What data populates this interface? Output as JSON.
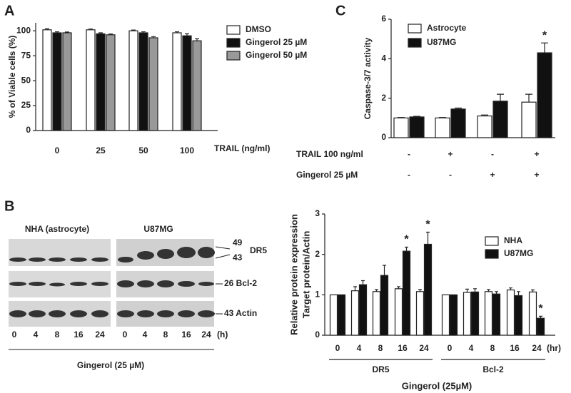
{
  "panels": [
    "A",
    "B",
    "C"
  ],
  "blot": {
    "groups": [
      "NHA (astrocyte)",
      "U87MG"
    ],
    "markers": [
      "49",
      "43"
    ],
    "target": "DR5",
    "rows": [
      "26 Bcl-2",
      "43 Actin"
    ],
    "times": [
      "0",
      "4",
      "8",
      "16",
      "24"
    ],
    "unit": "(h)",
    "treatment": "Gingerol  (25 µM)"
  },
  "chart_data": [
    {
      "type": "bar",
      "ylabel": "% of Viable cells (%)",
      "xlabel": "TRAIL (ng/ml)",
      "categories": [
        "0",
        "25",
        "50",
        "100"
      ],
      "ylim": [
        0,
        108
      ],
      "yticks": [
        0,
        25,
        50,
        75,
        100
      ],
      "series": [
        {
          "name": "DMSO",
          "color": "#ffffff",
          "values": [
            101,
            101,
            100,
            98
          ],
          "errors": [
            1,
            0.8,
            0.8,
            1
          ]
        },
        {
          "name": "Gingerol 25 µM",
          "color": "#111111",
          "values": [
            98,
            97,
            98,
            95
          ],
          "errors": [
            1,
            1,
            1,
            2
          ]
        },
        {
          "name": "Gingerol 50 µM",
          "color": "#999999",
          "values": [
            98,
            96,
            93,
            90
          ],
          "errors": [
            0.8,
            0.8,
            1.2,
            2
          ]
        }
      ]
    },
    {
      "type": "bar",
      "ylabel": "Caspase-3/7 activity",
      "category_rows": [
        {
          "label": "TRAIL 100 ng/ml",
          "values": [
            "-",
            "+",
            "-",
            "+"
          ]
        },
        {
          "label": "Gingerol 25 µM",
          "values": [
            "-",
            "-",
            "+",
            "+"
          ]
        }
      ],
      "ylim": [
        0,
        6
      ],
      "yticks": [
        0,
        2,
        4,
        6
      ],
      "series": [
        {
          "name": "Astrocyte",
          "color": "#ffffff",
          "values": [
            1.0,
            1.0,
            1.1,
            1.8
          ],
          "errors": [
            0.02,
            0.02,
            0.05,
            0.4
          ]
        },
        {
          "name": "U87MG",
          "color": "#111111",
          "values": [
            1.05,
            1.45,
            1.85,
            4.3
          ],
          "errors": [
            0.03,
            0.05,
            0.35,
            0.5
          ],
          "value_labels": [
            null,
            null,
            null,
            "*"
          ]
        }
      ]
    },
    {
      "type": "bar",
      "ylabel": [
        "Relative protein expression",
        "Target protein/Actin"
      ],
      "xlabel": "Gingerol (25µM)",
      "x_unit": "(hr)",
      "groups": [
        {
          "label": "DR5",
          "categories": [
            "0",
            "4",
            "8",
            "16",
            "24"
          ]
        },
        {
          "label": "Bcl-2",
          "categories": [
            "0",
            "4",
            "8",
            "16",
            "24"
          ]
        }
      ],
      "ylim": [
        0,
        3
      ],
      "yticks": [
        0,
        1,
        2,
        3
      ],
      "series": [
        {
          "name": "NHA",
          "color": "#ffffff",
          "values": [
            1,
            1.1,
            1.08,
            1.15,
            1.08,
            1,
            1.06,
            1.08,
            1.12,
            1.07
          ],
          "errors": [
            0,
            0.1,
            0.05,
            0.05,
            0.05,
            0,
            0.08,
            0.05,
            0.05,
            0.05
          ]
        },
        {
          "name": "U87MG",
          "color": "#111111",
          "values": [
            1,
            1.25,
            1.48,
            2.08,
            2.25,
            1,
            1.07,
            1.02,
            0.98,
            0.42
          ],
          "errors": [
            0,
            0.1,
            0.25,
            0.1,
            0.3,
            0,
            0.08,
            0.06,
            0.1,
            0.05
          ],
          "value_labels": [
            null,
            null,
            null,
            "*",
            "*",
            null,
            null,
            null,
            null,
            "*"
          ]
        }
      ]
    }
  ]
}
